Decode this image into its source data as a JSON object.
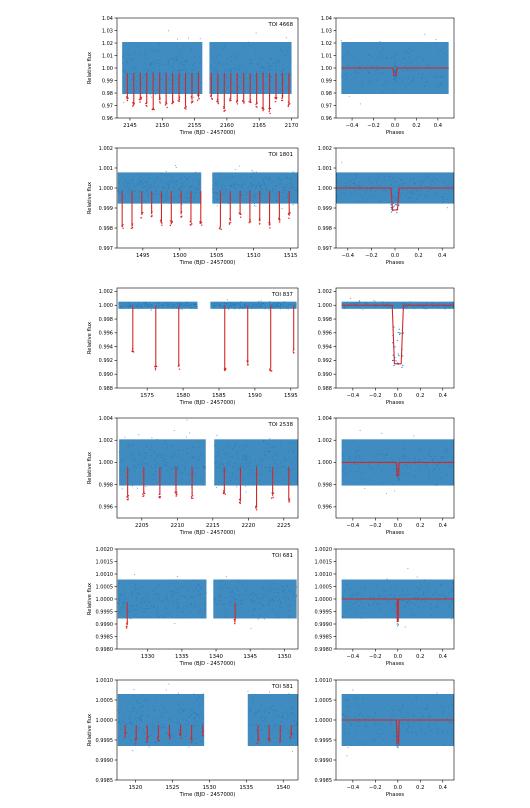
{
  "figure": {
    "axis_labels": {
      "time": "Time (BJD - 2457000)",
      "phase": "Phases",
      "flux": "Relative flux"
    }
  },
  "colors": {
    "data": "#1f77b4",
    "model": "#d62728",
    "axes": "#000000"
  },
  "chart_data": [
    {
      "type": "scatter",
      "title": "TOI 4668",
      "xlabel": "Time (BJD - 2457000)",
      "ylabel": "Relative flux",
      "xlim": [
        2143,
        2171
      ],
      "ylim": [
        0.96,
        1.04
      ],
      "xticks": [
        2145,
        2150,
        2155,
        2160,
        2165,
        2170
      ],
      "yticks": [
        0.96,
        0.97,
        0.98,
        0.99,
        1.0,
        1.01,
        1.02,
        1.03,
        1.04
      ],
      "ytick_labels": [
        "0.96",
        "0.97",
        "0.98",
        "0.99",
        "1.00",
        "1.01",
        "1.02",
        "1.03",
        "1.04"
      ],
      "segments": [
        [
          2143.8,
          2156.2
        ],
        [
          2157.3,
          2170.0
        ]
      ],
      "baseline": 1.0,
      "scatter": 0.008,
      "transit_period": 1.0,
      "transit_t0": 2144.6,
      "transit_depth": 0.03,
      "phase_fold": {
        "xlabel": "Phases",
        "xlim": [
          -0.55,
          0.55
        ],
        "ylim": [
          0.96,
          1.04
        ],
        "xticks": [
          -0.4,
          -0.2,
          0.0,
          0.2,
          0.4
        ],
        "xtick_labels": [
          "−0.4",
          "−0.2",
          "0.0",
          "0.2",
          "0.4"
        ],
        "yticks": [
          0.96,
          0.97,
          0.98,
          0.99,
          1.0,
          1.01,
          1.02,
          1.03,
          1.04
        ],
        "ytick_labels": [
          "0.96",
          "0.97",
          "0.98",
          "0.99",
          "1.00",
          "1.01",
          "1.02",
          "1.03",
          "1.04"
        ],
        "model_depth": 0.006,
        "model_halfwidth": 0.018
      }
    },
    {
      "type": "scatter",
      "title": "TOI 1801",
      "xlabel": "Time (BJD - 2457000)",
      "ylabel": "Relative flux",
      "xlim": [
        1491.5,
        1516
      ],
      "ylim": [
        0.997,
        1.002
      ],
      "xticks": [
        1495,
        1500,
        1505,
        1510,
        1515
      ],
      "yticks": [
        0.997,
        0.998,
        0.999,
        1.0,
        1.001,
        1.002
      ],
      "ytick_labels": [
        "0.997",
        "0.998",
        "0.999",
        "1.000",
        "1.001",
        "1.002"
      ],
      "segments": [
        [
          1491.6,
          1502.9
        ],
        [
          1504.4,
          1516.0
        ]
      ],
      "baseline": 1.0,
      "scatter": 0.0003,
      "transit_period": 1.33,
      "transit_t0": 1492.2,
      "transit_depth": 0.0017,
      "phase_fold": {
        "xlabel": "Phases",
        "xlim": [
          -0.5,
          0.5
        ],
        "ylim": [
          0.997,
          1.002
        ],
        "xticks": [
          -0.4,
          -0.2,
          0.0,
          0.2,
          0.4
        ],
        "xtick_labels": [
          "−0.4",
          "−0.2",
          "0.0",
          "0.2",
          "0.4"
        ],
        "yticks": [
          0.997,
          0.998,
          0.999,
          1.0,
          1.001,
          1.002
        ],
        "ytick_labels": [
          "0.997",
          "0.998",
          "0.999",
          "1.000",
          "1.001",
          "1.002"
        ],
        "model_depth": 0.0011,
        "model_halfwidth": 0.035
      }
    },
    {
      "type": "scatter",
      "title": "TOI 837",
      "xlabel": "Time (BJD - 2457000)",
      "ylabel": "Relative flux",
      "xlim": [
        1570.8,
        1596
      ],
      "ylim": [
        0.988,
        1.0025
      ],
      "xticks": [
        1575,
        1580,
        1585,
        1590,
        1595
      ],
      "yticks": [
        0.988,
        0.99,
        0.992,
        0.994,
        0.996,
        0.998,
        1.0,
        1.002
      ],
      "ytick_labels": [
        "0.988",
        "0.990",
        "0.992",
        "0.994",
        "0.996",
        "0.998",
        "1.000",
        "1.002"
      ],
      "segments": [
        [
          1571.0,
          1582.0
        ],
        [
          1583.8,
          1595.8
        ]
      ],
      "baseline": 1.0,
      "scatter": 0.0002,
      "transit_period": 3.2,
      "transit_t0": 1573.0,
      "transit_depth": 0.0085,
      "phase_fold": {
        "xlabel": "Phases",
        "xlim": [
          -0.55,
          0.5
        ],
        "ylim": [
          0.988,
          1.0025
        ],
        "xticks": [
          -0.4,
          -0.2,
          0.0,
          0.2,
          0.4
        ],
        "xtick_labels": [
          "−0.4",
          "−0.2",
          "0.0",
          "0.2",
          "0.4"
        ],
        "yticks": [
          0.988,
          0.99,
          0.992,
          0.994,
          0.996,
          0.998,
          1.0,
          1.002
        ],
        "ytick_labels": [
          "0.988",
          "0.990",
          "0.992",
          "0.994",
          "0.996",
          "0.998",
          "1.000",
          "1.002"
        ],
        "model_depth": 0.0085,
        "model_halfwidth": 0.05
      }
    },
    {
      "type": "scatter",
      "title": "TOI 2538",
      "xlabel": "Time (BJD - 2457000)",
      "ylabel": "Relative flux",
      "xlim": [
        2201.5,
        2227
      ],
      "ylim": [
        0.995,
        1.004
      ],
      "xticks": [
        2205,
        2210,
        2215,
        2220,
        2225
      ],
      "yticks": [
        0.996,
        0.998,
        1.0,
        1.002,
        1.004
      ],
      "ytick_labels": [
        "0.996",
        "0.998",
        "1.000",
        "1.002",
        "1.004"
      ],
      "segments": [
        [
          2201.8,
          2214.0
        ],
        [
          2215.2,
          2227.0
        ]
      ],
      "baseline": 1.0,
      "scatter": 0.0008,
      "transit_period": 2.27,
      "transit_t0": 2203.0,
      "transit_depth": 0.0035,
      "phase_fold": {
        "xlabel": "Phases",
        "xlim": [
          -0.55,
          0.5
        ],
        "ylim": [
          0.995,
          1.004
        ],
        "xticks": [
          -0.4,
          -0.2,
          0.0,
          0.2,
          0.4
        ],
        "xtick_labels": [
          "−0.4",
          "−0.2",
          "0.0",
          "0.2",
          "0.4"
        ],
        "yticks": [
          0.996,
          0.998,
          1.0,
          1.002,
          1.004
        ],
        "ytick_labels": [
          "0.996",
          "0.998",
          "1.000",
          "1.002",
          "1.004"
        ],
        "model_depth": 0.0012,
        "model_halfwidth": 0.012
      }
    },
    {
      "type": "scatter",
      "title": "TOI 681",
      "xlabel": "Time (BJD - 2457000)",
      "ylabel": "Relative flux",
      "xlim": [
        1325.5,
        1352
      ],
      "ylim": [
        0.998,
        1.002
      ],
      "xticks": [
        1330,
        1335,
        1340,
        1345,
        1350
      ],
      "yticks": [
        0.998,
        0.9985,
        0.999,
        0.9995,
        1.0,
        1.0005,
        1.001,
        1.0015,
        1.002
      ],
      "ytick_labels": [
        "0.9980",
        "0.9985",
        "0.9990",
        "0.9995",
        "1.0000",
        "1.0005",
        "1.0010",
        "1.0015",
        "1.0020"
      ],
      "segments": [
        [
          1325.6,
          1338.6
        ],
        [
          1339.6,
          1351.8
        ]
      ],
      "baseline": 1.0,
      "scatter": 0.0003,
      "transit_period": 15.8,
      "transit_t0": 1327.0,
      "transit_depth": 0.0011,
      "phase_fold": {
        "xlabel": "Phases",
        "xlim": [
          -0.55,
          0.5
        ],
        "ylim": [
          0.998,
          1.002
        ],
        "xticks": [
          -0.4,
          -0.2,
          0.0,
          0.2,
          0.4
        ],
        "xtick_labels": [
          "−0.4",
          "−0.2",
          "0.0",
          "0.2",
          "0.4"
        ],
        "yticks": [
          0.998,
          0.9985,
          0.999,
          0.9995,
          1.0,
          1.0005,
          1.001,
          1.0015,
          1.002
        ],
        "ytick_labels": [
          "0.9980",
          "0.9985",
          "0.9990",
          "0.9995",
          "1.0000",
          "1.0005",
          "1.0010",
          "1.0015",
          "1.0020"
        ],
        "model_depth": 0.0009,
        "model_halfwidth": 0.006
      }
    },
    {
      "type": "scatter",
      "title": "TOI 581",
      "xlabel": "Time (BJD - 2457000)",
      "ylabel": "Relative flux",
      "xlim": [
        1517.5,
        1542
      ],
      "ylim": [
        0.9985,
        1.001
      ],
      "xticks": [
        1520,
        1525,
        1530,
        1535,
        1540
      ],
      "yticks": [
        0.9985,
        0.999,
        0.9995,
        1.0,
        1.0005,
        1.001
      ],
      "ytick_labels": [
        "0.9985",
        "0.9990",
        "0.9995",
        "1.0000",
        "1.0005",
        "1.0010"
      ],
      "segments": [
        [
          1517.6,
          1529.3
        ],
        [
          1535.2,
          1542.0
        ]
      ],
      "baseline": 1.0,
      "scatter": 0.00025,
      "transit_period": 1.5,
      "transit_t0": 1518.6,
      "transit_depth": 0.00045,
      "phase_fold": {
        "xlabel": "Phases",
        "xlim": [
          -0.55,
          0.5
        ],
        "ylim": [
          0.9985,
          1.001
        ],
        "xticks": [
          -0.4,
          -0.2,
          0.0,
          0.2,
          0.4
        ],
        "xtick_labels": [
          "−0.4",
          "−0.2",
          "0.0",
          "0.2",
          "0.4"
        ],
        "yticks": [
          0.9985,
          0.999,
          0.9995,
          1.0,
          1.0005,
          1.001
        ],
        "ytick_labels": [
          "0.9985",
          "0.9990",
          "0.9995",
          "1.0000",
          "1.0005",
          "1.0010"
        ],
        "model_depth": 0.0006,
        "model_halfwidth": 0.012
      }
    }
  ]
}
